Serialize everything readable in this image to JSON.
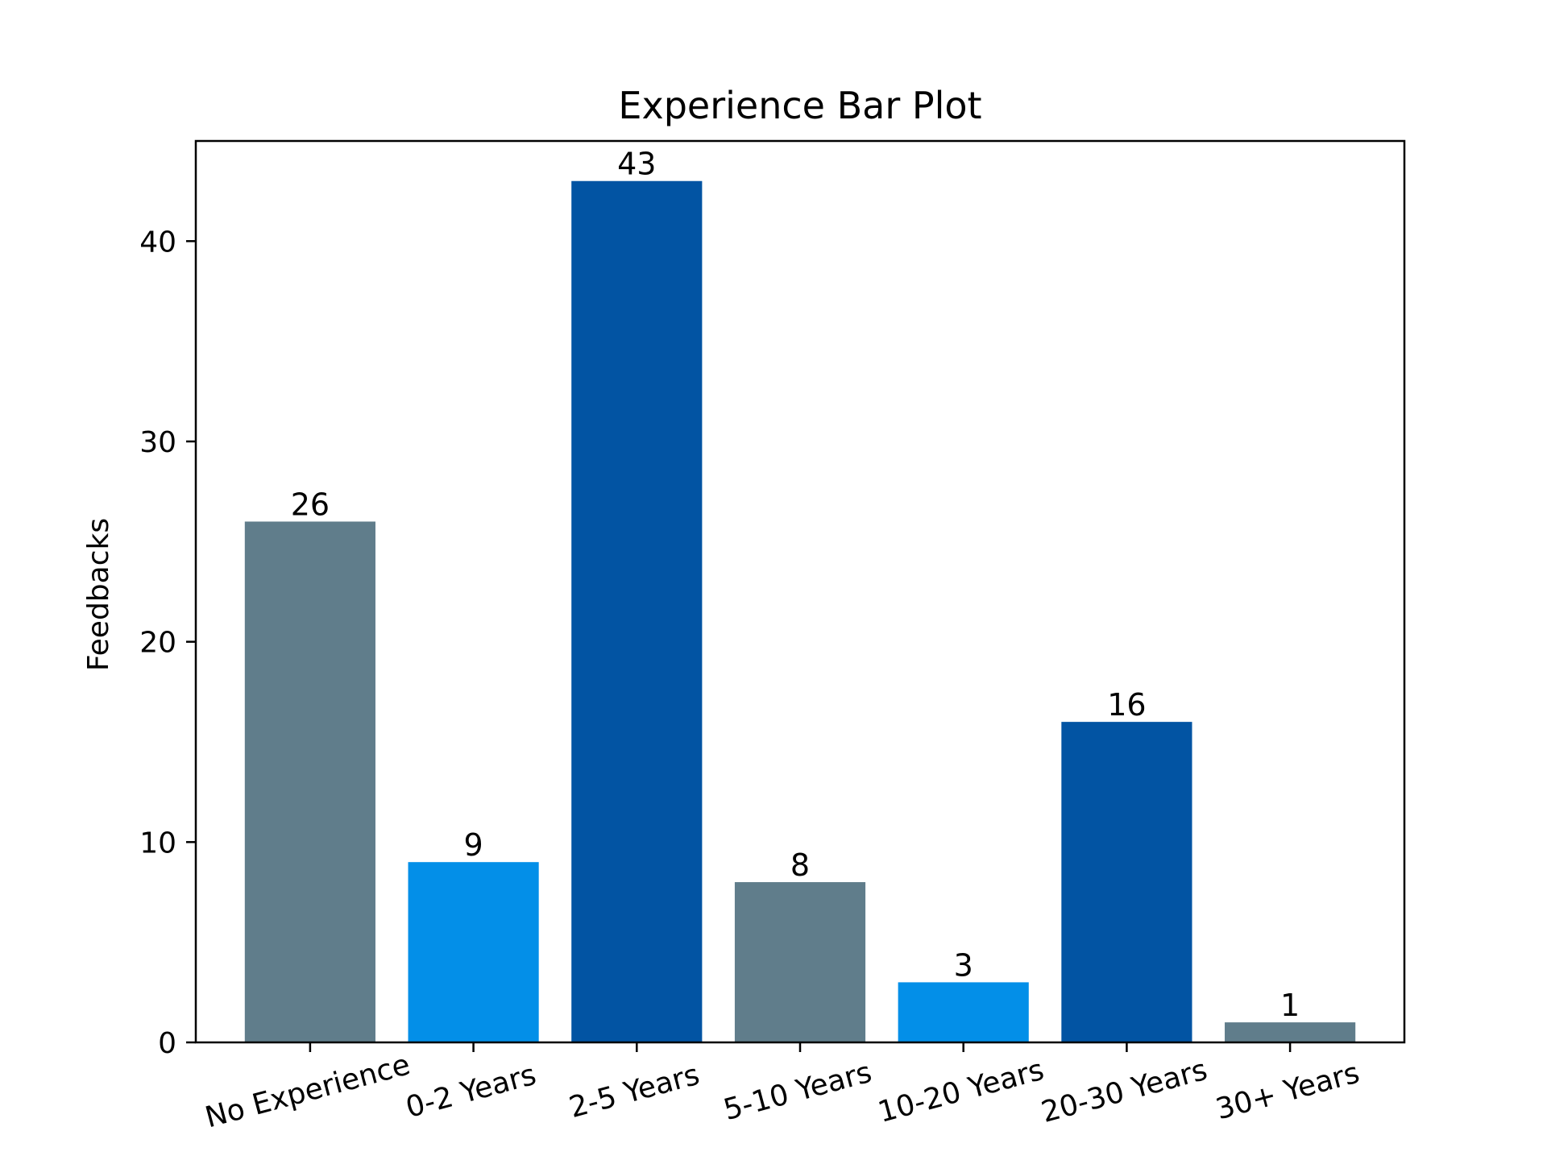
{
  "chart_data": {
    "type": "bar",
    "title": "Experience Bar Plot",
    "xlabel": "",
    "ylabel": "Feedbacks",
    "categories": [
      "No Experience",
      "0-2 Years",
      "2-5 Years",
      "5-10 Years",
      "10-20 Years",
      "20-30 Years",
      "30+ Years"
    ],
    "values": [
      26,
      9,
      43,
      8,
      3,
      16,
      1
    ],
    "colors": [
      "#607d8b",
      "#038fe8",
      "#0254a3",
      "#607d8b",
      "#038fe8",
      "#0254a3",
      "#607d8b"
    ],
    "ylim": [
      0,
      45
    ],
    "yticks": [
      0,
      10,
      20,
      30,
      40
    ],
    "xtick_rotation_deg": -15,
    "grid": false,
    "legend": "none"
  }
}
